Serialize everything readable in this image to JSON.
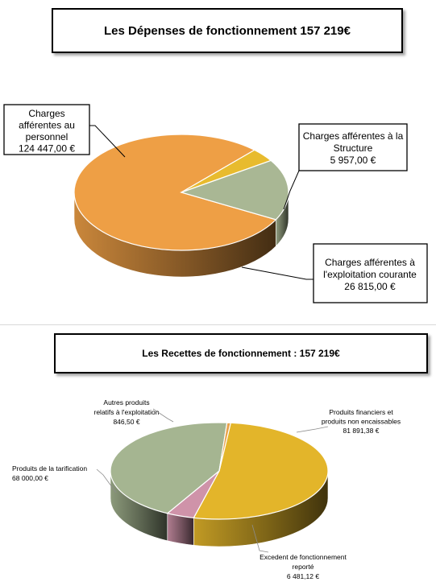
{
  "titles": {
    "depenses": "Les Dépenses de fonctionnement 157 219€",
    "recettes": "Les Recettes de fonctionnement : 157 219€"
  },
  "chart_data": [
    {
      "type": "pie",
      "title": "Les Dépenses de fonctionnement 157 219€",
      "slices": [
        {
          "label": [
            "Charges",
            "afférentes au",
            "personnel"
          ],
          "value_text": "124 447,00 €",
          "value": 124447.0,
          "color": "#EE9F45"
        },
        {
          "label": [
            "Charges afférentes à la",
            "Structure"
          ],
          "value_text": "5 957,00 €",
          "value": 5957.0,
          "color": "#E8BB2E"
        },
        {
          "label": [
            "Charges afférentes à",
            "l'exploitation courante"
          ],
          "value_text": "26 815,00 €",
          "value": 26815.0,
          "color": "#A9B794"
        }
      ]
    },
    {
      "type": "pie",
      "title": "Les Recettes de fonctionnement : 157 219€",
      "slices": [
        {
          "label": [
            "Produits financiers et",
            "produits non encaissables"
          ],
          "value_text": "81 891,38 €",
          "value": 81891.38,
          "color": "#E3B52A"
        },
        {
          "label": [
            "Excedent de fonctionnement",
            "reporté"
          ],
          "value_text": "6 481,12 €",
          "value": 6481.12,
          "color": "#CF93A9"
        },
        {
          "label": [
            "Produits de la tarification"
          ],
          "value_text": "68 000,00 €",
          "value": 68000.0,
          "color": "#A5B591"
        },
        {
          "label": [
            "Autres produits",
            "relatifs à l'exploitation"
          ],
          "value_text": "846,50 €",
          "value": 846.5,
          "color": "#E9A24B"
        }
      ]
    }
  ]
}
